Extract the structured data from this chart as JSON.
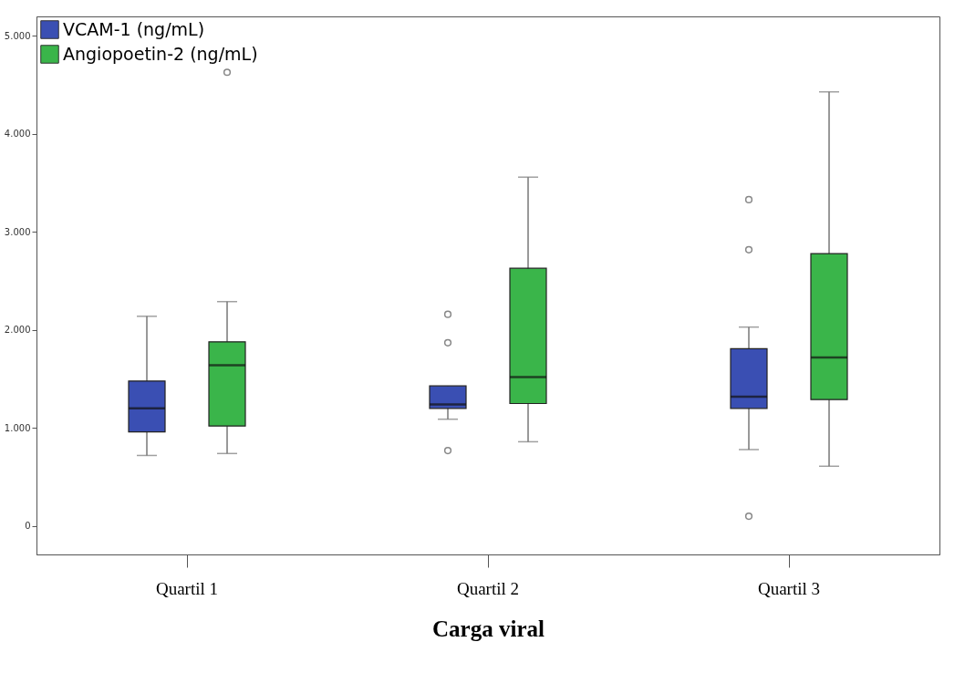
{
  "chart_data": {
    "type": "box",
    "xlabel": "Carga viral",
    "categories": [
      "Quartil 1",
      "Quartil 2",
      "Quartil 3"
    ],
    "ylim": [
      -290,
      5200
    ],
    "yticks": [
      {
        "value": 0,
        "label": "0"
      },
      {
        "value": 1000,
        "label": "1.000"
      },
      {
        "value": 2000,
        "label": "2.000"
      },
      {
        "value": 3000,
        "label": "3.000"
      },
      {
        "value": 4000,
        "label": "4.000"
      },
      {
        "value": 5000,
        "label": "5.000"
      }
    ],
    "grid": false,
    "legend": "top left",
    "series": [
      {
        "name": "VCAM-1 (ng/mL)",
        "color": "#3a4fb3",
        "boxes": [
          {
            "low": 720,
            "q1": 960,
            "median": 1200,
            "q3": 1480,
            "high": 2140
          },
          {
            "low": 1090,
            "q1": 1200,
            "median": 1240,
            "q3": 1430,
            "high": 1430,
            "outliers": [
              2160,
              1870,
              770
            ]
          },
          {
            "low": 780,
            "q1": 1200,
            "median": 1320,
            "q3": 1810,
            "high": 2030,
            "outliers": [
              3330,
              2820,
              100
            ]
          }
        ]
      },
      {
        "name": "Angiopoetin-2 (ng/mL)",
        "color": "#3ab54a",
        "boxes": [
          {
            "low": 740,
            "q1": 1020,
            "median": 1640,
            "q3": 1880,
            "high": 2290,
            "outliers": [
              4630
            ]
          },
          {
            "low": 860,
            "q1": 1250,
            "median": 1520,
            "q3": 2630,
            "high": 3560
          },
          {
            "low": 610,
            "q1": 1290,
            "median": 1720,
            "q3": 2780,
            "high": 4430
          }
        ]
      }
    ]
  }
}
